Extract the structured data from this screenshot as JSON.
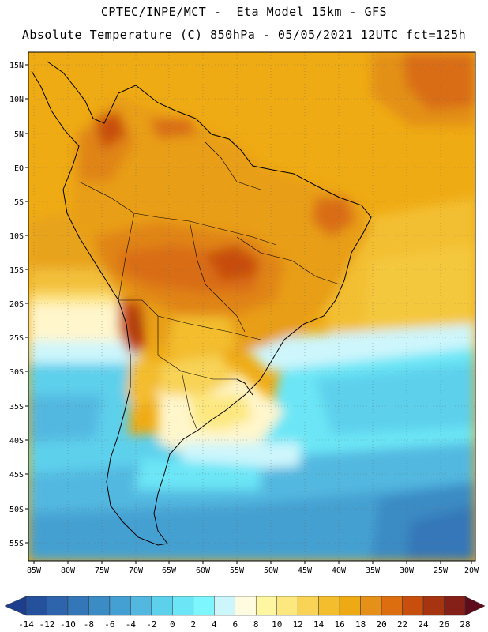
{
  "header": {
    "line1": "CPTEC/INPE/MCT -  Eta Model 15km - GFS",
    "line2": "Absolute Temperature (C) 850hPa - 05/05/2021 12UTC fct=125h"
  },
  "map": {
    "lat_labels": [
      "15N",
      "10N",
      "5N",
      "EQ",
      "5S",
      "10S",
      "15S",
      "20S",
      "25S",
      "30S",
      "35S",
      "40S",
      "45S",
      "50S",
      "55S"
    ],
    "lon_labels": [
      "85W",
      "80W",
      "75W",
      "70W",
      "65W",
      "60W",
      "55W",
      "50W",
      "45W",
      "40W",
      "35W",
      "30W",
      "25W",
      "20W"
    ]
  },
  "colorbar": {
    "ticks": [
      "-14",
      "-12",
      "-10",
      "-8",
      "-6",
      "-4",
      "-2",
      "0",
      "2",
      "4",
      "6",
      "8",
      "10",
      "12",
      "14",
      "16",
      "18",
      "20",
      "22",
      "24",
      "26",
      "28"
    ],
    "colors": [
      "#1c3e8c",
      "#25519c",
      "#2e64ac",
      "#3477b8",
      "#3b8bc4",
      "#44a0d2",
      "#52b8e0",
      "#5dd0ec",
      "#6ce6f6",
      "#7ef6fe",
      "#cdf6fc",
      "#fffbe0",
      "#fef6a0",
      "#fde880",
      "#f8d356",
      "#f3bd2e",
      "#edaa14",
      "#e59018",
      "#dd6e10",
      "#c84e0e",
      "#a63410",
      "#842018",
      "#5e0c1c"
    ]
  }
}
